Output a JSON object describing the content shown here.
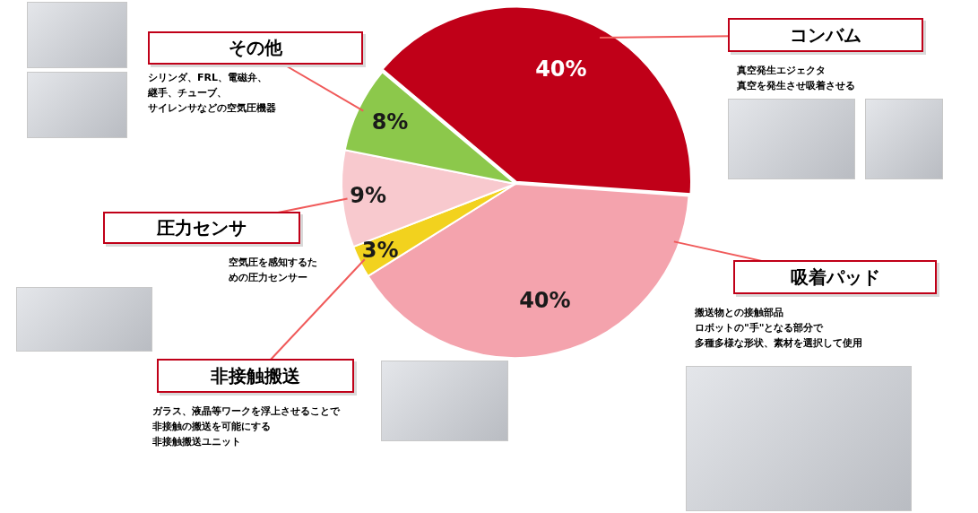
{
  "chart_data": {
    "type": "pie",
    "categories": [
      "コンバム",
      "吸着パッド",
      "非接触搬送",
      "圧力センサ",
      "その他"
    ],
    "values": [
      40,
      40,
      3,
      9,
      8
    ],
    "value_labels": [
      "40%",
      "40%",
      "3%",
      "9%",
      "8%"
    ],
    "data_labels": true,
    "colors": [
      "#c00018",
      "#f4a3ad",
      "#f2d21e",
      "#f8c9ce",
      "#8cc84b"
    ],
    "annotations": [
      [
        "真空発生エジェクタ",
        "真空を発生させ吸着させる"
      ],
      [
        "搬送物との接触部品",
        "ロボットの\"手\"となる部分で",
        "多種多様な形状、素材を選択して使用"
      ],
      [
        "ガラス、液晶等ワークを浮上させることで",
        "非接触の搬送を可能にする",
        "非接触搬送ユニット"
      ],
      [
        "空気圧を感知するた",
        "めの圧力センサー"
      ],
      [
        "シリンダ、FRL、電磁弁、",
        "継手、チューブ、",
        "サイレンサなどの空気圧機器"
      ]
    ]
  }
}
